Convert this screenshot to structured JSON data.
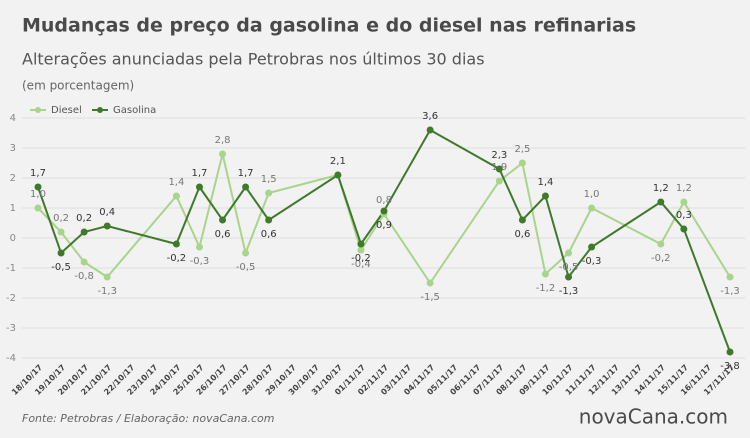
{
  "chart_data": {
    "type": "line",
    "title": "Mudanças de preço da gasolina e do diesel nas refinarias",
    "subtitle": "Alterações anunciadas pela Petrobras nos últimos 30 dias",
    "unit_note": "(em porcentagem)",
    "source": "Fonte: Petrobras  / Elaboração:  novaCana.com",
    "logo": "novaCana.com",
    "xticks": [
      "18/10/17",
      "19/10/17",
      "20/10/17",
      "21/10/17",
      "22/10/17",
      "23/10/17",
      "24/10/17",
      "25/10/17",
      "26/10/17",
      "27/10/17",
      "28/10/17",
      "29/10/17",
      "30/10/17",
      "31/10/17",
      "01/11/17",
      "02/11/17",
      "03/11/17",
      "04/11/17",
      "05/11/17",
      "06/11/17",
      "07/11/17",
      "08/11/17",
      "09/11/17",
      "10/11/17",
      "11/11/17",
      "12/11/17",
      "13/11/17",
      "14/11/17",
      "15/11/17",
      "16/11/17",
      "17/11/17"
    ],
    "x": [
      "18/10/17",
      "19/10/17",
      "20/10/17",
      "21/10/17",
      "24/10/17",
      "25/10/17",
      "26/10/17",
      "27/10/17",
      "28/10/17",
      "31/10/17",
      "01/11/17",
      "02/11/17",
      "04/11/17",
      "07/11/17",
      "08/11/17",
      "09/11/17",
      "10/11/17",
      "11/11/17",
      "14/11/17",
      "15/11/17",
      "17/11/17"
    ],
    "series": [
      {
        "name": "Diesel",
        "color": "#a8d48c",
        "values": [
          1.0,
          0.2,
          -0.8,
          -1.3,
          1.4,
          -0.3,
          2.8,
          -0.5,
          1.5,
          2.1,
          -0.4,
          0.8,
          -1.5,
          1.9,
          2.5,
          -1.2,
          -0.5,
          1.0,
          -0.2,
          1.2,
          -1.3
        ],
        "value_labels": [
          "1,0",
          "0,2",
          "-0,8",
          "-1,3",
          "1,4",
          "-0,3",
          "2,8",
          "-0,5",
          "1,5",
          null,
          "-0,4",
          "0,8",
          "-1,5",
          "1,9",
          "2,5",
          "-1,2",
          "-0,5",
          "1,0",
          "-0,2",
          "1,2",
          "-1,3"
        ]
      },
      {
        "name": "Gasolina",
        "color": "#3f7a2c",
        "values": [
          1.7,
          -0.5,
          0.2,
          0.4,
          -0.2,
          1.7,
          0.6,
          1.7,
          0.6,
          2.1,
          -0.2,
          0.9,
          3.6,
          2.3,
          0.6,
          1.4,
          -1.3,
          -0.3,
          1.2,
          0.3,
          -3.8
        ],
        "value_labels": [
          "1,7",
          "-0,5",
          "0,2",
          "0,4",
          "-0,2",
          "1,7",
          "0,6",
          "1,7",
          "0,6",
          "2,1",
          "-0,2",
          "0,9",
          "3,6",
          "2,3",
          "0,6",
          "1,4",
          "-1,3",
          "-0,3",
          "1,2",
          "0,3",
          "-3,8"
        ]
      }
    ],
    "ylim": [
      -4,
      4
    ],
    "yticks": [
      -4,
      -3,
      -2,
      -1,
      0,
      1,
      2,
      3,
      4
    ],
    "grid": true
  }
}
